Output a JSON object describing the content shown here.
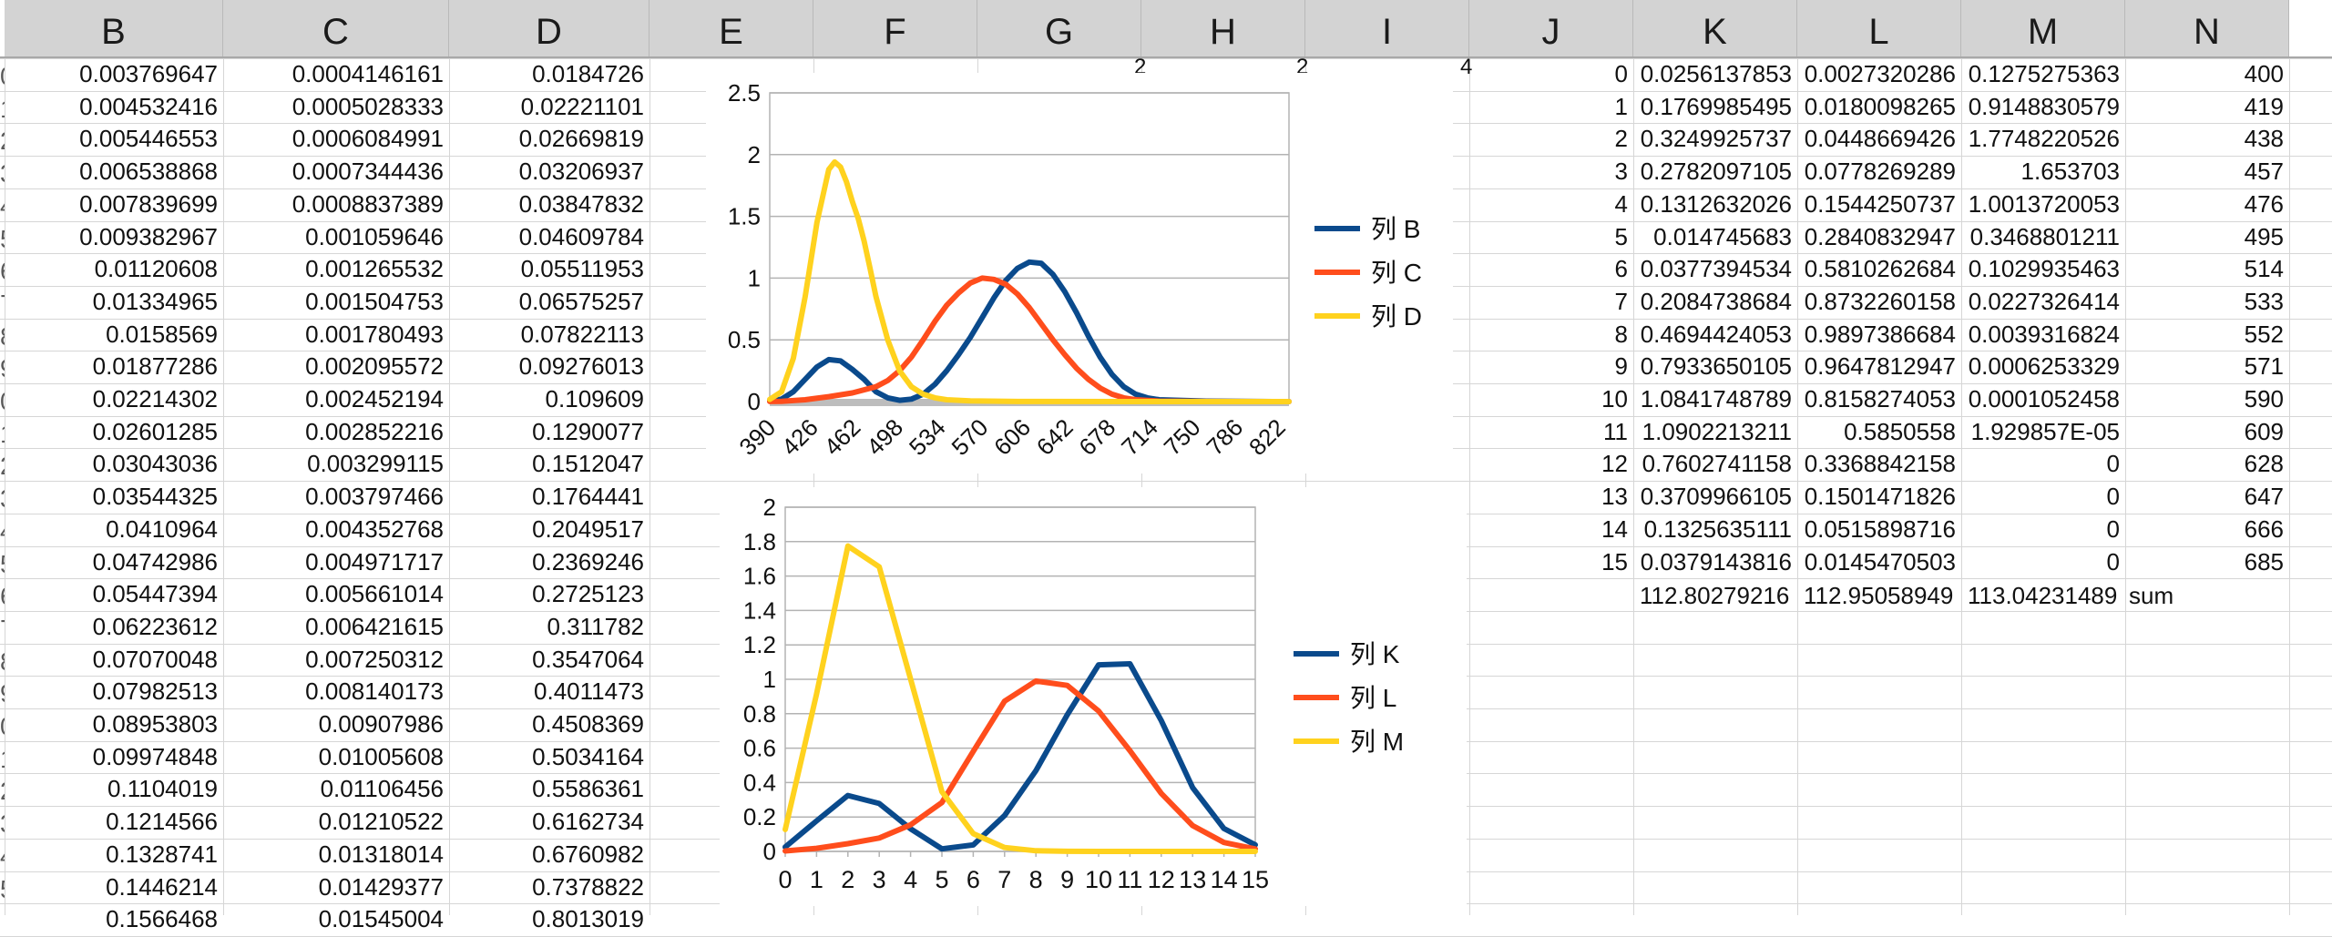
{
  "column_headers": [
    "B",
    "C",
    "D",
    "E",
    "F",
    "G",
    "H",
    "I",
    "J",
    "K",
    "L",
    "M",
    "N"
  ],
  "left_table": {
    "B": [
      "0.003769647",
      "0.004532416",
      "0.005446553",
      "0.006538868",
      "0.007839699",
      "0.009382967",
      "0.01120608",
      "0.01334965",
      "0.0158569",
      "0.01877286",
      "0.02214302",
      "0.02601285",
      "0.03043036",
      "0.03544325",
      "0.0410964",
      "0.04742986",
      "0.05447394",
      "0.06223612",
      "0.07070048",
      "0.07982513",
      "0.08953803",
      "0.09974848",
      "0.1104019",
      "0.1214566",
      "0.1328741",
      "0.1446214",
      "0.1566468"
    ],
    "C": [
      "0.0004146161",
      "0.0005028333",
      "0.0006084991",
      "0.0007344436",
      "0.0008837389",
      "0.001059646",
      "0.001265532",
      "0.001504753",
      "0.001780493",
      "0.002095572",
      "0.002452194",
      "0.002852216",
      "0.003299115",
      "0.003797466",
      "0.004352768",
      "0.004971717",
      "0.005661014",
      "0.006421615",
      "0.007250312",
      "0.008140173",
      "0.00907986",
      "0.01005608",
      "0.01106456",
      "0.01210522",
      "0.01318014",
      "0.01429377",
      "0.01545004"
    ],
    "D": [
      "0.0184726",
      "0.02221101",
      "0.02669819",
      "0.03206937",
      "0.03847832",
      "0.04609784",
      "0.05511953",
      "0.06575257",
      "0.07822113",
      "0.09276013",
      "0.109609",
      "0.1290077",
      "0.1512047",
      "0.1764441",
      "0.2049517",
      "0.2369246",
      "0.2725123",
      "0.311782",
      "0.3547064",
      "0.4011473",
      "0.4508369",
      "0.5034164",
      "0.5586361",
      "0.6162734",
      "0.6760982",
      "0.7378822",
      "0.8013019"
    ]
  },
  "right_table": {
    "J": [
      "0",
      "1",
      "2",
      "3",
      "4",
      "5",
      "6",
      "7",
      "8",
      "9",
      "10",
      "11",
      "12",
      "13",
      "14",
      "15"
    ],
    "K": [
      "0.0256137853",
      "0.1769985495",
      "0.3249925737",
      "0.2782097105",
      "0.1312632026",
      "0.014745683",
      "0.0377394534",
      "0.2084738684",
      "0.4694424053",
      "0.7933650105",
      "1.0841748789",
      "1.0902213211",
      "0.7602741158",
      "0.3709966105",
      "0.1325635111",
      "0.0379143816"
    ],
    "L": [
      "0.0027320286",
      "0.0180098265",
      "0.0448669426",
      "0.0778269289",
      "0.1544250737",
      "0.2840832947",
      "0.5810262684",
      "0.8732260158",
      "0.9897386684",
      "0.9647812947",
      "0.8158274053",
      "0.5850558",
      "0.3368842158",
      "0.1501471826",
      "0.0515898716",
      "0.0145470503"
    ],
    "M": [
      "0.1275275363",
      "0.9148830579",
      "1.7748220526",
      "1.653703",
      "1.0013720053",
      "0.3468801211",
      "0.1029935463",
      "0.0227326414",
      "0.0039316824",
      "0.0006253329",
      "0.0001052458",
      "1.929857E-05",
      "0",
      "0",
      "0",
      "0"
    ],
    "N": [
      "400",
      "419",
      "438",
      "457",
      "476",
      "495",
      "514",
      "533",
      "552",
      "571",
      "590",
      "609",
      "628",
      "647",
      "666",
      "685"
    ],
    "sums": {
      "K": "112.80279216",
      "L": "112.95058949",
      "M": "113.04231489",
      "label": "sum"
    }
  },
  "stray_header_text": {
    "g": "2",
    "h": "2",
    "i": "4"
  },
  "row_header_fragments": [
    "0",
    "1",
    "2",
    "3",
    "4",
    "5",
    "6",
    "7",
    "8",
    "9",
    "0",
    "1",
    "2",
    "3",
    "4",
    "5",
    "6",
    "7",
    "8",
    "9",
    "0",
    "1",
    "2",
    "3",
    "4",
    "5"
  ],
  "colors": {
    "blue": "#0a4a8c",
    "orange": "#ff4d1c",
    "yellow": "#ffd21e",
    "header_bg": "#d3d3d3",
    "grid": "#d6d6d6"
  },
  "chart_data": [
    {
      "type": "line",
      "title": "",
      "xlabel": "",
      "ylabel": "",
      "x_tick_labels": [
        "390",
        "426",
        "462",
        "498",
        "534",
        "570",
        "606",
        "642",
        "678",
        "714",
        "750",
        "786",
        "822"
      ],
      "x_range": [
        390,
        830
      ],
      "ylim": [
        0,
        2.5
      ],
      "y_ticks": [
        "0",
        "0.5",
        "1",
        "1.5",
        "2",
        "2.5"
      ],
      "grid": true,
      "legend_position": "right",
      "series": [
        {
          "name": "列  B",
          "color": "#0a4a8c",
          "x": [
            390,
            400,
            410,
            420,
            430,
            440,
            450,
            460,
            470,
            480,
            490,
            500,
            510,
            520,
            530,
            540,
            550,
            560,
            570,
            580,
            590,
            600,
            610,
            620,
            630,
            640,
            650,
            660,
            670,
            680,
            690,
            700,
            710,
            720,
            760,
            800,
            830
          ],
          "y": [
            0.003,
            0.02,
            0.08,
            0.18,
            0.28,
            0.34,
            0.33,
            0.26,
            0.18,
            0.08,
            0.03,
            0.01,
            0.02,
            0.06,
            0.14,
            0.25,
            0.38,
            0.52,
            0.68,
            0.84,
            0.98,
            1.08,
            1.13,
            1.12,
            1.03,
            0.89,
            0.72,
            0.53,
            0.36,
            0.22,
            0.12,
            0.06,
            0.03,
            0.015,
            0.004,
            0.001,
            0
          ]
        },
        {
          "name": "列  C",
          "color": "#ff4d1c",
          "x": [
            390,
            400,
            420,
            440,
            460,
            480,
            490,
            500,
            510,
            520,
            530,
            540,
            550,
            560,
            570,
            580,
            590,
            600,
            610,
            620,
            630,
            640,
            650,
            660,
            670,
            680,
            690,
            700,
            720,
            760,
            830
          ],
          "y": [
            0.0004,
            0.002,
            0.015,
            0.04,
            0.07,
            0.12,
            0.17,
            0.25,
            0.36,
            0.5,
            0.65,
            0.78,
            0.88,
            0.96,
            1.0,
            0.99,
            0.95,
            0.87,
            0.76,
            0.63,
            0.5,
            0.38,
            0.27,
            0.18,
            0.11,
            0.06,
            0.03,
            0.015,
            0.004,
            0.001,
            0
          ]
        },
        {
          "name": "列  D",
          "color": "#ffd21e",
          "x": [
            390,
            400,
            410,
            420,
            430,
            440,
            445,
            450,
            455,
            460,
            465,
            470,
            475,
            480,
            490,
            500,
            510,
            520,
            530,
            540,
            560,
            600,
            700,
            830
          ],
          "y": [
            0.018,
            0.08,
            0.35,
            0.85,
            1.45,
            1.88,
            1.94,
            1.9,
            1.78,
            1.62,
            1.48,
            1.3,
            1.08,
            0.85,
            0.5,
            0.25,
            0.12,
            0.06,
            0.03,
            0.015,
            0.005,
            0.001,
            0,
            0
          ]
        }
      ]
    },
    {
      "type": "line",
      "title": "",
      "xlabel": "",
      "ylabel": "",
      "categories": [
        "0",
        "1",
        "2",
        "3",
        "4",
        "5",
        "6",
        "7",
        "8",
        "9",
        "10",
        "11",
        "12",
        "13",
        "14",
        "15"
      ],
      "ylim": [
        0,
        2
      ],
      "y_ticks": [
        "0",
        "0.2",
        "0.4",
        "0.6",
        "0.8",
        "1",
        "1.2",
        "1.4",
        "1.6",
        "1.8",
        "2"
      ],
      "grid": true,
      "legend_position": "right",
      "series": [
        {
          "name": "列  K",
          "color": "#0a4a8c",
          "values": [
            0.0256,
            0.177,
            0.325,
            0.2782,
            0.1313,
            0.0147,
            0.0377,
            0.2085,
            0.4694,
            0.7934,
            1.0842,
            1.0902,
            0.7603,
            0.371,
            0.1326,
            0.0379
          ]
        },
        {
          "name": "列  L",
          "color": "#ff4d1c",
          "values": [
            0.0027,
            0.018,
            0.0449,
            0.0778,
            0.1544,
            0.2841,
            0.581,
            0.8732,
            0.9897,
            0.9648,
            0.8158,
            0.5851,
            0.3369,
            0.1501,
            0.0516,
            0.0145
          ]
        },
        {
          "name": "列  M",
          "color": "#ffd21e",
          "values": [
            0.1275,
            0.9149,
            1.7748,
            1.6537,
            1.0014,
            0.3469,
            0.103,
            0.0227,
            0.0039,
            0.0006,
            0.0001,
            2e-05,
            0,
            0,
            0,
            0
          ]
        }
      ]
    }
  ]
}
